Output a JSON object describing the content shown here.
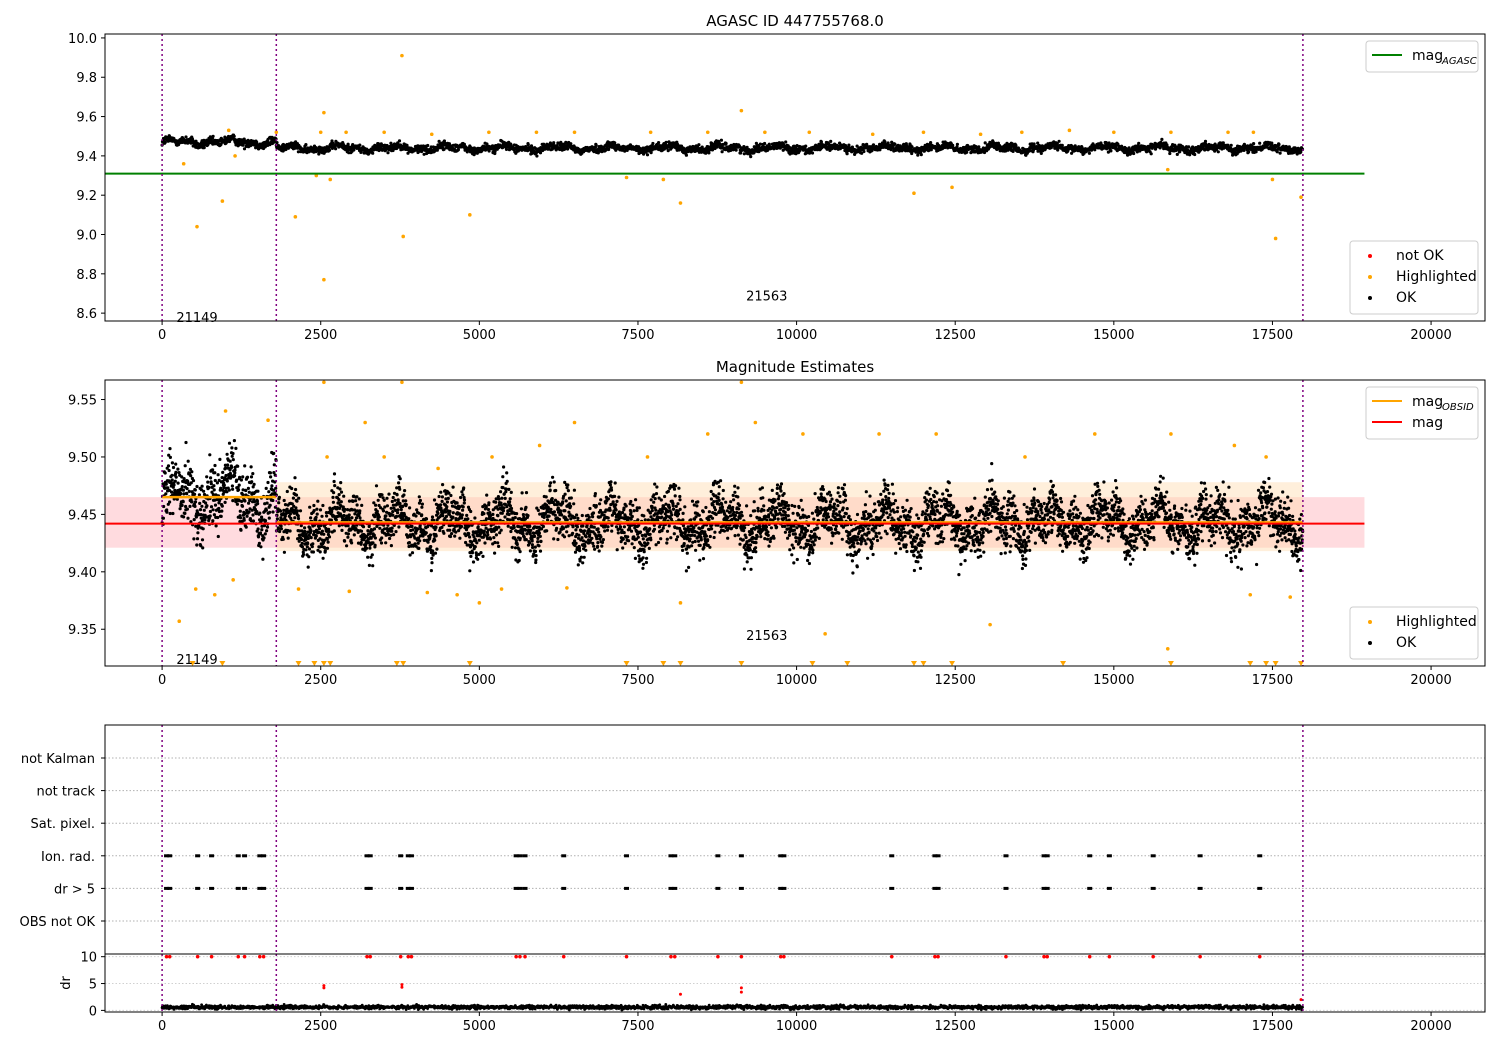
{
  "chart_data": [
    {
      "type": "scatter",
      "title": "AGASC ID 447755768.0",
      "xlim": [
        -900,
        20850
      ],
      "ylim": [
        8.56,
        10.02
      ],
      "xticks": [
        0,
        2500,
        5000,
        7500,
        10000,
        12500,
        15000,
        17500,
        20000
      ],
      "xtick_labels": [
        "0",
        "2500",
        "5000",
        "7500",
        "10000",
        "12500",
        "15000",
        "17500",
        "20000"
      ],
      "yticks": [
        8.6,
        8.8,
        9.0,
        9.2,
        9.4,
        9.6,
        9.8,
        10.0
      ],
      "ytick_labels": [
        "8.6",
        "8.8",
        "9.0",
        "9.2",
        "9.4",
        "9.6",
        "9.8",
        "10.0"
      ],
      "colors": {
        "ok": "#000000",
        "highlighted": "#ffa500",
        "not_ok": "#ff0000",
        "mag_agasc": "#008000",
        "obsid_line": "#800080"
      },
      "series": [
        {
          "name": "OK",
          "color": "#000000",
          "segments": [
            {
              "x": [
                0,
                1800
              ],
              "level": [
                9.47,
                9.47
              ],
              "noise": 0.022
            },
            {
              "x": [
                1800,
                17980
              ],
              "level": [
                9.44,
                9.44
              ],
              "noise": 0.02
            }
          ]
        },
        {
          "name": "Highlighted",
          "color": "#ffa500",
          "points": [
            [
              550,
              9.04
            ],
            [
              3780,
              9.91
            ],
            [
              2550,
              9.62
            ],
            [
              2100,
              9.09
            ],
            [
              4850,
              9.1
            ],
            [
              3800,
              8.99
            ],
            [
              2550,
              8.77
            ],
            [
              9130,
              9.63
            ],
            [
              8170,
              9.16
            ],
            [
              7900,
              9.28
            ],
            [
              11850,
              9.21
            ],
            [
              12450,
              9.24
            ],
            [
              17550,
              8.98
            ],
            [
              17500,
              9.28
            ],
            [
              15850,
              9.33
            ],
            [
              17950,
              9.19
            ],
            [
              7320,
              9.29
            ],
            [
              2650,
              9.28
            ],
            [
              2430,
              9.3
            ],
            [
              950,
              9.17
            ],
            [
              1050,
              9.53
            ],
            [
              340,
              9.36
            ],
            [
              1150,
              9.4
            ],
            [
              1800,
              9.52
            ],
            [
              2500,
              9.52
            ],
            [
              2900,
              9.52
            ],
            [
              3500,
              9.52
            ],
            [
              4250,
              9.51
            ],
            [
              5150,
              9.52
            ],
            [
              5900,
              9.52
            ],
            [
              6500,
              9.52
            ],
            [
              7700,
              9.52
            ],
            [
              8600,
              9.52
            ],
            [
              9500,
              9.52
            ],
            [
              10200,
              9.52
            ],
            [
              11200,
              9.51
            ],
            [
              12000,
              9.52
            ],
            [
              12900,
              9.51
            ],
            [
              13550,
              9.52
            ],
            [
              14300,
              9.53
            ],
            [
              15000,
              9.52
            ],
            [
              15900,
              9.52
            ],
            [
              16800,
              9.52
            ],
            [
              17200,
              9.52
            ]
          ]
        },
        {
          "name": "not OK",
          "color": "#ff0000",
          "points": []
        }
      ],
      "hlines": [
        {
          "name": "mag_AGASC",
          "y": 9.31,
          "x": [
            -900,
            18950
          ],
          "color": "#008000"
        }
      ],
      "vlines": [
        0,
        1800,
        17980
      ],
      "annotations": [
        {
          "text": "21149",
          "x": 550,
          "y": 8.58
        },
        {
          "text": "21563",
          "x": 9530,
          "y": 8.69
        }
      ],
      "legend_top": {
        "position": "top-right",
        "entries": [
          {
            "label": "mag",
            "sub": "AGASC",
            "color": "#008000",
            "kind": "line"
          }
        ]
      },
      "legend_bottom": {
        "position": "bottom-right",
        "entries": [
          {
            "label": "not OK",
            "color": "#ff0000",
            "kind": "dot"
          },
          {
            "label": "Highlighted",
            "color": "#ffa500",
            "kind": "dot"
          },
          {
            "label": "OK",
            "color": "#000000",
            "kind": "dot"
          }
        ]
      }
    },
    {
      "type": "scatter",
      "title": "Magnitude Estimates",
      "xlim": [
        -900,
        20850
      ],
      "ylim": [
        9.318,
        9.567
      ],
      "xticks": [
        0,
        2500,
        5000,
        7500,
        10000,
        12500,
        15000,
        17500,
        20000
      ],
      "xtick_labels": [
        "0",
        "2500",
        "5000",
        "7500",
        "10000",
        "12500",
        "15000",
        "17500",
        "20000"
      ],
      "yticks": [
        9.35,
        9.4,
        9.45,
        9.5,
        9.55
      ],
      "ytick_labels": [
        "9.35",
        "9.40",
        "9.45",
        "9.50",
        "9.55"
      ],
      "series": [
        {
          "name": "OK",
          "color": "#000000",
          "segments": [
            {
              "x": [
                0,
                1800
              ],
              "level": [
                9.465,
                9.465
              ],
              "noise": 0.028
            },
            {
              "x": [
                1800,
                17980
              ],
              "level": [
                9.443,
                9.443
              ],
              "noise": 0.022
            }
          ]
        },
        {
          "name": "Highlighted",
          "color": "#ffa500",
          "points": [
            [
              270,
              9.357
            ],
            [
              530,
              9.385
            ],
            [
              830,
              9.38
            ],
            [
              1120,
              9.393
            ],
            [
              2150,
              9.385
            ],
            [
              2950,
              9.383
            ],
            [
              4180,
              9.382
            ],
            [
              4650,
              9.38
            ],
            [
              5000,
              9.373
            ],
            [
              5350,
              9.385
            ],
            [
              6380,
              9.386
            ],
            [
              8170,
              9.373
            ],
            [
              10450,
              9.346
            ],
            [
              13050,
              9.354
            ],
            [
              15850,
              9.333
            ],
            [
              17780,
              9.378
            ],
            [
              17150,
              9.38
            ],
            [
              2550,
              9.565
            ],
            [
              3780,
              9.565
            ],
            [
              9130,
              9.565
            ],
            [
              1000,
              9.54
            ],
            [
              1670,
              9.532
            ],
            [
              2600,
              9.5
            ],
            [
              3200,
              9.53
            ],
            [
              3500,
              9.5
            ],
            [
              4350,
              9.49
            ],
            [
              5200,
              9.5
            ],
            [
              5950,
              9.51
            ],
            [
              6500,
              9.53
            ],
            [
              7650,
              9.5
            ],
            [
              8600,
              9.52
            ],
            [
              9350,
              9.53
            ],
            [
              10100,
              9.52
            ],
            [
              11300,
              9.52
            ],
            [
              12200,
              9.52
            ],
            [
              13600,
              9.5
            ],
            [
              14700,
              9.52
            ],
            [
              15900,
              9.52
            ],
            [
              16900,
              9.51
            ],
            [
              17400,
              9.5
            ]
          ]
        },
        {
          "name": "clipped",
          "color": "#ffa500",
          "marker": "triangle-down",
          "y": 9.318,
          "x": [
            480,
            950,
            2150,
            2400,
            2550,
            2650,
            3700,
            3800,
            4850,
            7320,
            7900,
            8170,
            9130,
            10250,
            10800,
            11850,
            12000,
            12450,
            14200,
            15900,
            17150,
            17400,
            17550,
            17950
          ]
        }
      ],
      "bands": [
        {
          "y": [
            9.421,
            9.465
          ],
          "x": [
            -900,
            18950
          ],
          "color": "#ffb0b8"
        },
        {
          "y": [
            9.418,
            9.478
          ],
          "x": [
            1800,
            17980
          ],
          "color": "#ffdcb0"
        }
      ],
      "steps": [
        {
          "name": "mag_OBSID",
          "color": "#ffa500",
          "segments": [
            [
              0,
              1800,
              9.465
            ],
            [
              1800,
              17980,
              9.443
            ]
          ]
        }
      ],
      "hlines": [
        {
          "name": "mag",
          "y": 9.442,
          "x": [
            -900,
            18950
          ],
          "color": "#ff0000"
        }
      ],
      "vlines": [
        0,
        1800,
        17980
      ],
      "annotations": [
        {
          "text": "21149",
          "x": 550,
          "y": 9.324
        },
        {
          "text": "21563",
          "x": 9530,
          "y": 9.345
        }
      ],
      "legend_top": {
        "position": "top-right",
        "entries": [
          {
            "label": "mag",
            "sub": "OBSID",
            "color": "#ffa500",
            "kind": "line"
          },
          {
            "label": "mag",
            "sub": "",
            "color": "#ff0000",
            "kind": "line"
          }
        ]
      },
      "legend_bottom": {
        "position": "bottom-right",
        "entries": [
          {
            "label": "Highlighted",
            "color": "#ffa500",
            "kind": "dot"
          },
          {
            "label": "OK",
            "color": "#000000",
            "kind": "dot"
          }
        ]
      }
    },
    {
      "type": "scatter",
      "title": "",
      "xlim": [
        -900,
        20850
      ],
      "rows": [
        "not Kalman",
        "not track",
        "Sat. pixel.",
        "Ion. rad.",
        "dr > 5",
        "OBS not OK"
      ],
      "flag_x": [
        70,
        120,
        560,
        780,
        1200,
        1300,
        1540,
        1600,
        3230,
        3280,
        3760,
        3880,
        3930,
        5580,
        5640,
        5720,
        6330,
        7320,
        8020,
        8080,
        8760,
        9130,
        9750,
        9800,
        11500,
        12180,
        12230,
        13300,
        13900,
        13950,
        14620,
        14930,
        15620,
        16360,
        17300
      ],
      "flag_rows": [
        "Ion. rad.",
        "dr > 5"
      ],
      "vlines": [
        0,
        1800,
        17980
      ]
    },
    {
      "type": "scatter",
      "title": "",
      "xlim": [
        -900,
        20850
      ],
      "ylim": [
        -0.3,
        10.5
      ],
      "ylabel": "dr",
      "yticks": [
        0,
        5,
        10
      ],
      "ytick_labels": [
        "0",
        "5",
        "10"
      ],
      "xticks": [
        0,
        2500,
        5000,
        7500,
        10000,
        12500,
        15000,
        17500,
        20000
      ],
      "xtick_labels": [
        "0",
        "2500",
        "5000",
        "7500",
        "10000",
        "12500",
        "15000",
        "17500",
        "20000"
      ],
      "series": [
        {
          "name": "OK",
          "color": "#000000",
          "segments": [
            {
              "x": [
                0,
                17980
              ],
              "level": [
                0.6,
                0.6
              ],
              "noise": 0.35
            }
          ]
        },
        {
          "name": "not OK",
          "color": "#ff0000",
          "y": 10,
          "x": [
            70,
            120,
            560,
            780,
            1200,
            1300,
            1540,
            1600,
            3230,
            3280,
            3760,
            3880,
            3930,
            5580,
            5640,
            5720,
            6330,
            7320,
            8020,
            8080,
            8760,
            9130,
            9750,
            9800,
            11500,
            12180,
            12230,
            13300,
            13900,
            13950,
            14620,
            14930,
            15620,
            16360,
            17300
          ],
          "extra": [
            [
              2550,
              4.2
            ],
            [
              2550,
              4.6
            ],
            [
              3780,
              4.3
            ],
            [
              3780,
              4.8
            ],
            [
              9130,
              3.4
            ],
            [
              9130,
              4.2
            ],
            [
              8170,
              3.0
            ],
            [
              17950,
              2.0
            ]
          ]
        }
      ],
      "vlines": [
        0,
        1800,
        17980
      ]
    }
  ]
}
